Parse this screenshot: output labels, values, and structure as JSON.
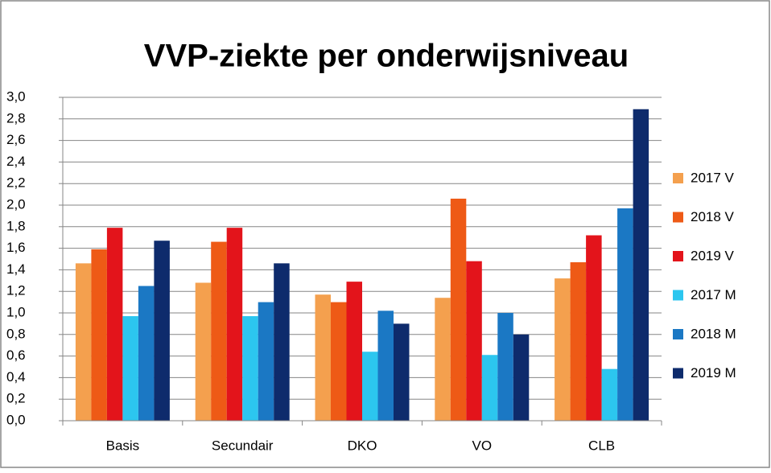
{
  "chart_data": {
    "type": "bar",
    "title": "VVP-ziekte per onderwijsniveau",
    "categories": [
      "Basis",
      "Secundair",
      "DKO",
      "VO",
      "CLB"
    ],
    "series": [
      {
        "name": "2017 V",
        "color": "#f4a04e",
        "values": [
          1.46,
          1.28,
          1.17,
          1.14,
          1.32
        ]
      },
      {
        "name": "2018 V",
        "color": "#ee5a16",
        "values": [
          1.59,
          1.66,
          1.1,
          2.06,
          1.47
        ]
      },
      {
        "name": "2019 V",
        "color": "#e3141b",
        "values": [
          1.79,
          1.79,
          1.29,
          1.48,
          1.72
        ]
      },
      {
        "name": "2017 M",
        "color": "#2cc6ef",
        "values": [
          0.97,
          0.97,
          0.64,
          0.61,
          0.48
        ]
      },
      {
        "name": "2018 M",
        "color": "#1b78c4",
        "values": [
          1.25,
          1.1,
          1.02,
          1.0,
          1.97
        ]
      },
      {
        "name": "2019 M",
        "color": "#0e2b6c",
        "values": [
          1.67,
          1.46,
          0.9,
          0.8,
          2.89
        ]
      }
    ],
    "ylim": [
      0,
      3
    ],
    "yticks": [
      {
        "value": 0,
        "label": "0,0"
      },
      {
        "value": 0.2,
        "label": "0,2"
      },
      {
        "value": 0.4,
        "label": "0,4"
      },
      {
        "value": 0.6,
        "label": "0,6"
      },
      {
        "value": 0.8,
        "label": "0,8"
      },
      {
        "value": 1.0,
        "label": "1,0"
      },
      {
        "value": 1.2,
        "label": "1,2"
      },
      {
        "value": 1.4,
        "label": "1,4"
      },
      {
        "value": 1.6,
        "label": "1,6"
      },
      {
        "value": 1.8,
        "label": "1,8"
      },
      {
        "value": 2.0,
        "label": "2,0"
      },
      {
        "value": 2.2,
        "label": "2,2"
      },
      {
        "value": 2.4,
        "label": "2,4"
      },
      {
        "value": 2.6,
        "label": "2,6"
      },
      {
        "value": 2.8,
        "label": "2,8"
      },
      {
        "value": 3.0,
        "label": "3,0"
      }
    ],
    "grid": true,
    "legend": "right"
  }
}
